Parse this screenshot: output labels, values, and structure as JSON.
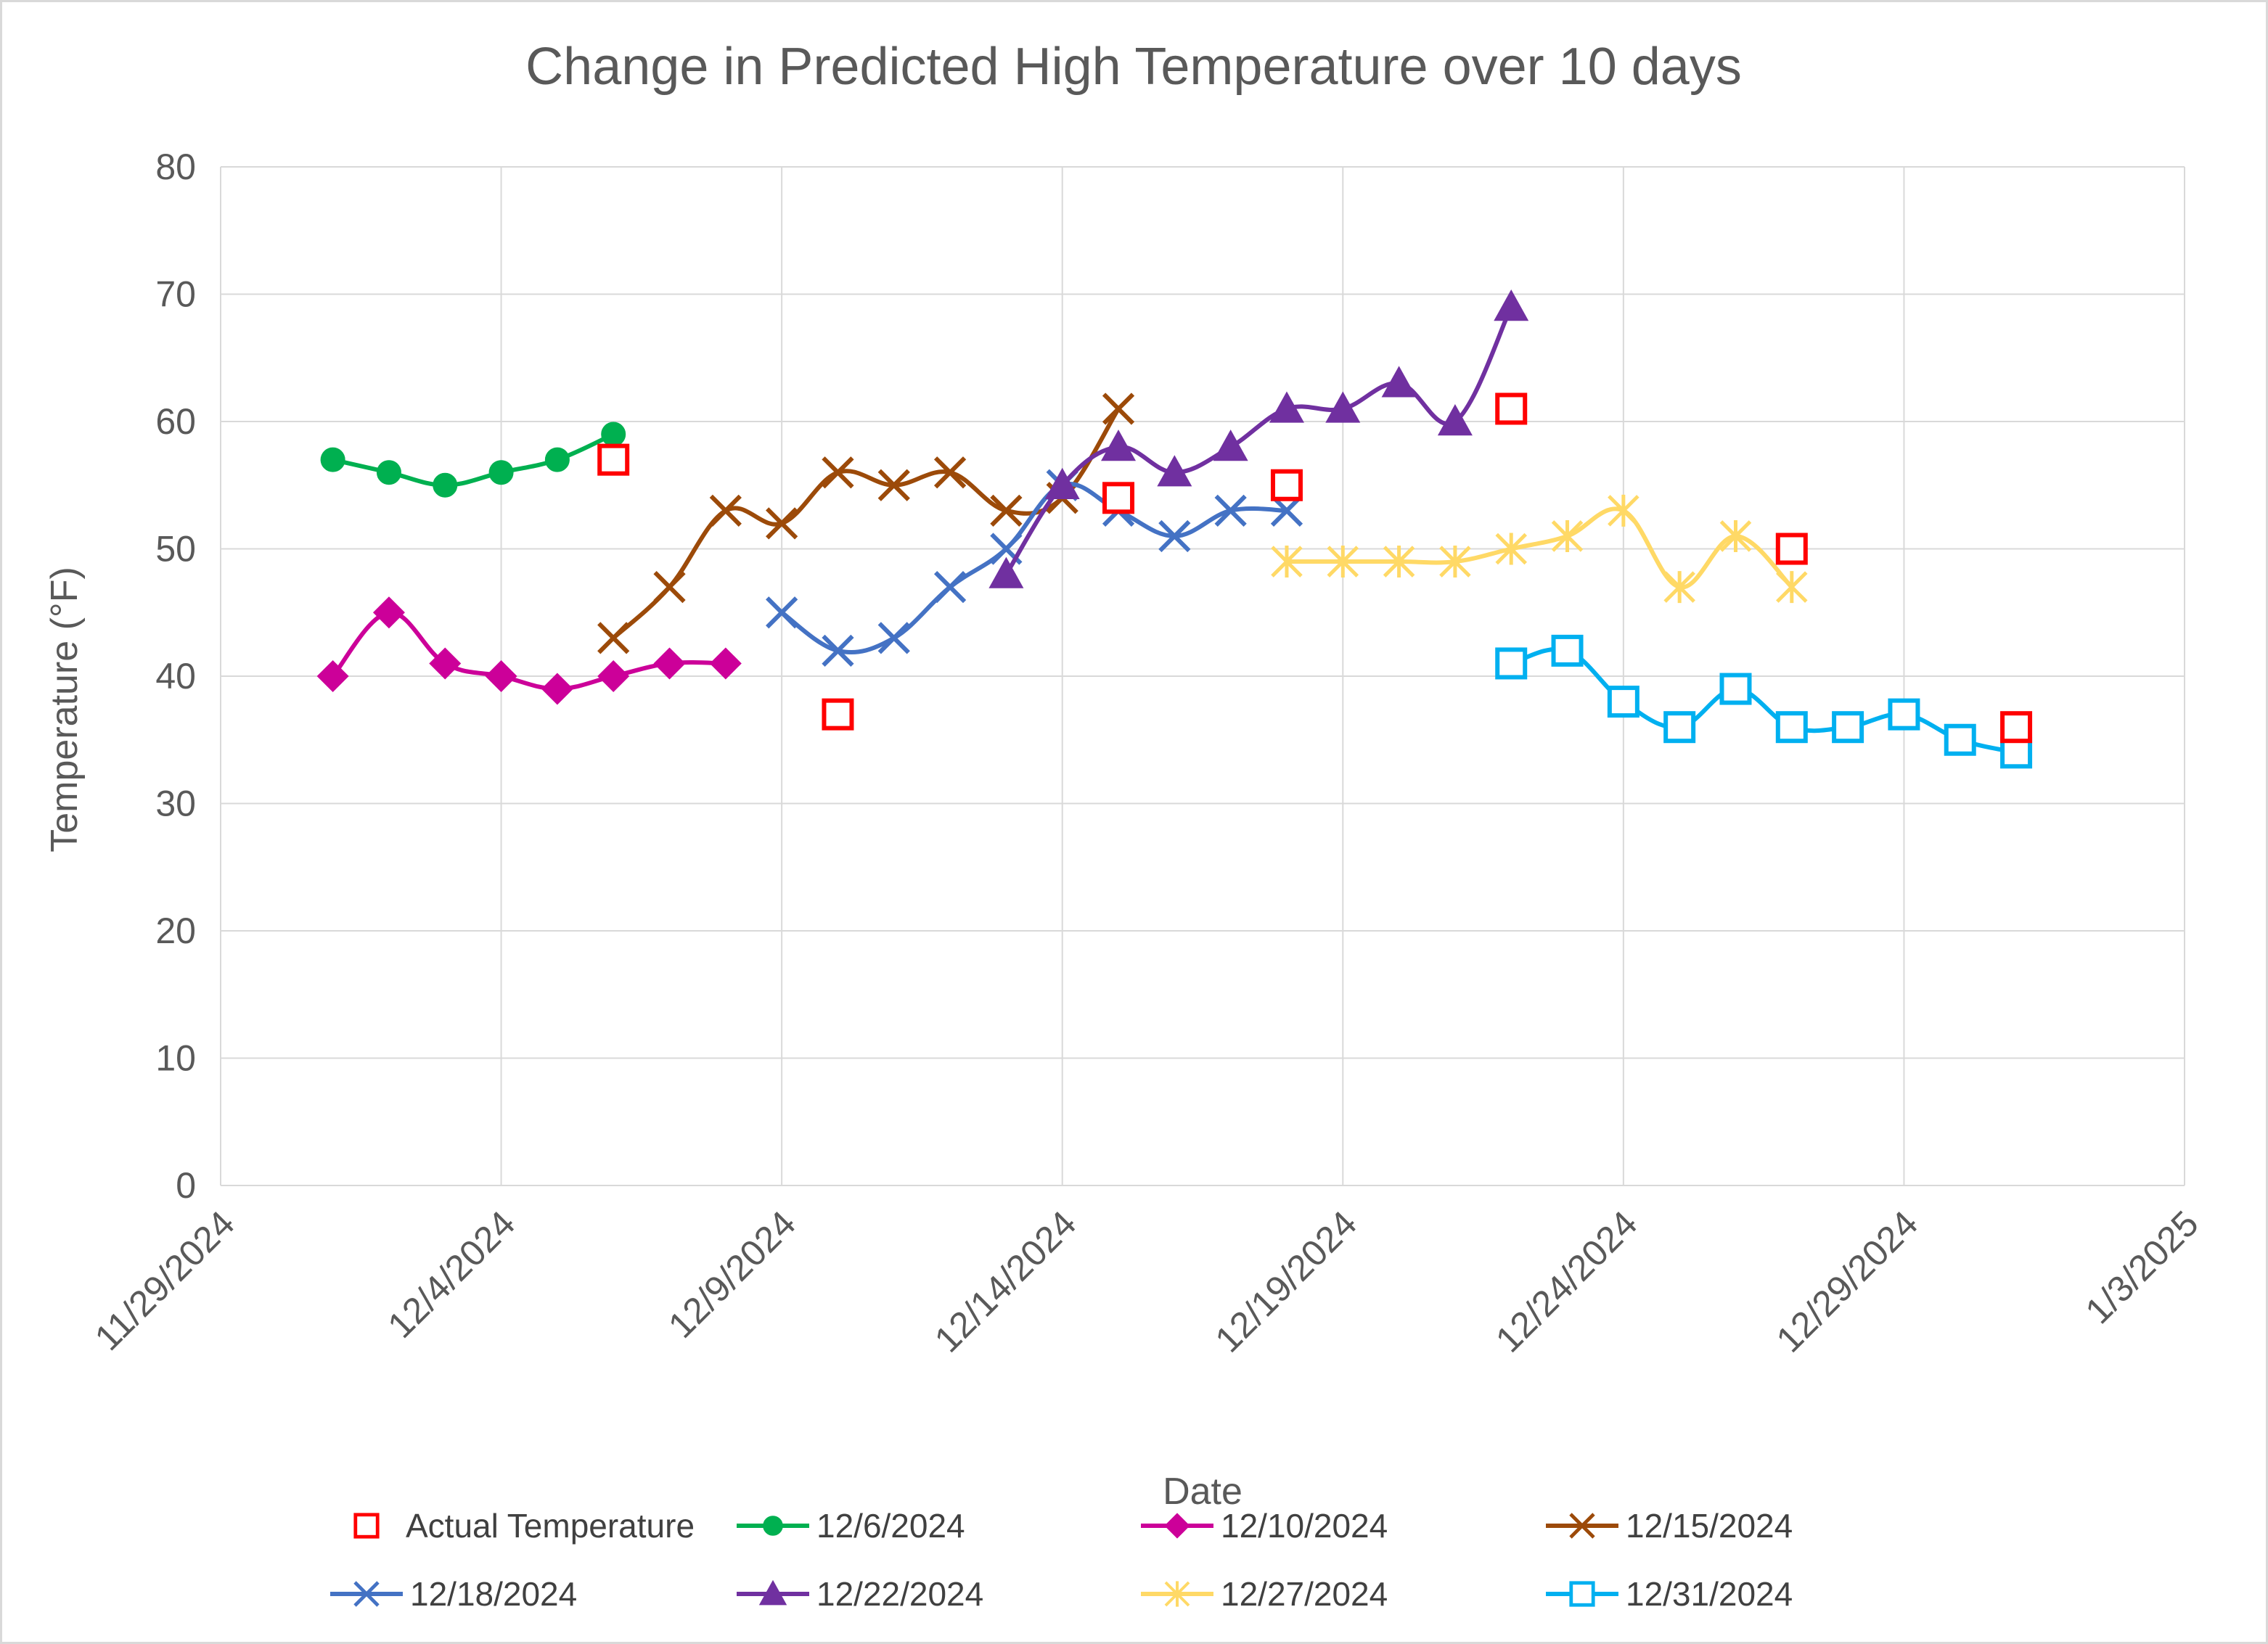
{
  "chart_data": {
    "type": "line",
    "title": "Change in Predicted High Temperature over 10 days",
    "xlabel": "Date",
    "ylabel": "Temperature (°F)",
    "ylim": [
      0,
      80
    ],
    "yticks": [
      "0",
      "10",
      "20",
      "30",
      "40",
      "50",
      "60",
      "70",
      "80"
    ],
    "xlim": [
      "2024-11-29",
      "2025-01-03"
    ],
    "xticks": [
      {
        "date": "2024-11-29",
        "label": "11/29/2024"
      },
      {
        "date": "2024-12-04",
        "label": "12/4/2024"
      },
      {
        "date": "2024-12-09",
        "label": "12/9/2024"
      },
      {
        "date": "2024-12-14",
        "label": "12/14/2024"
      },
      {
        "date": "2024-12-19",
        "label": "12/19/2024"
      },
      {
        "date": "2024-12-24",
        "label": "12/24/2024"
      },
      {
        "date": "2024-12-29",
        "label": "12/29/2024"
      },
      {
        "date": "2025-01-03",
        "label": "1/3/2025"
      }
    ],
    "grid": true,
    "legend_position": "bottom",
    "series": [
      {
        "name": "Actual Temperature",
        "color": "#ff0000",
        "marker": "square-open",
        "line": false,
        "x": [
          "2024-12-06",
          "2024-12-10",
          "2024-12-15",
          "2024-12-18",
          "2024-12-22",
          "2024-12-27",
          "2024-12-31"
        ],
        "y": [
          57,
          37,
          54,
          55,
          61,
          50,
          36
        ]
      },
      {
        "name": "12/6/2024",
        "color": "#00b050",
        "marker": "circle",
        "line": true,
        "x": [
          "2024-12-01",
          "2024-12-02",
          "2024-12-03",
          "2024-12-04",
          "2024-12-05",
          "2024-12-06"
        ],
        "y": [
          57,
          56,
          55,
          56,
          57,
          59
        ]
      },
      {
        "name": "12/10/2024",
        "color": "#cc0099",
        "marker": "diamond",
        "line": true,
        "x": [
          "2024-12-01",
          "2024-12-02",
          "2024-12-03",
          "2024-12-04",
          "2024-12-05",
          "2024-12-06",
          "2024-12-07",
          "2024-12-08"
        ],
        "y": [
          40,
          45,
          41,
          40,
          39,
          40,
          41,
          41
        ]
      },
      {
        "name": "12/15/2024",
        "color": "#9c4a09",
        "marker": "x",
        "line": true,
        "x": [
          "2024-12-06",
          "2024-12-07",
          "2024-12-08",
          "2024-12-09",
          "2024-12-10",
          "2024-12-11",
          "2024-12-12",
          "2024-12-13",
          "2024-12-14",
          "2024-12-15"
        ],
        "y": [
          43,
          47,
          53,
          52,
          56,
          55,
          56,
          53,
          54,
          61
        ]
      },
      {
        "name": "12/18/2024",
        "color": "#4472c4",
        "marker": "x",
        "line": true,
        "x": [
          "2024-12-09",
          "2024-12-10",
          "2024-12-11",
          "2024-12-12",
          "2024-12-13",
          "2024-12-14",
          "2024-12-15",
          "2024-12-16",
          "2024-12-17",
          "2024-12-18"
        ],
        "y": [
          45,
          42,
          43,
          47,
          50,
          55,
          53,
          51,
          53,
          53
        ]
      },
      {
        "name": "12/22/2024",
        "color": "#7030a0",
        "marker": "triangle",
        "line": true,
        "x": [
          "2024-12-13",
          "2024-12-14",
          "2024-12-15",
          "2024-12-16",
          "2024-12-17",
          "2024-12-18",
          "2024-12-19",
          "2024-12-20",
          "2024-12-21",
          "2024-12-22"
        ],
        "y": [
          48,
          55,
          58,
          56,
          58,
          61,
          61,
          63,
          60,
          69
        ]
      },
      {
        "name": "12/27/2024",
        "color": "#ffd966",
        "marker": "star",
        "line": true,
        "x": [
          "2024-12-18",
          "2024-12-19",
          "2024-12-20",
          "2024-12-21",
          "2024-12-22",
          "2024-12-23",
          "2024-12-24",
          "2024-12-25",
          "2024-12-26",
          "2024-12-27"
        ],
        "y": [
          49,
          49,
          49,
          49,
          50,
          51,
          53,
          47,
          51,
          47
        ]
      },
      {
        "name": "12/31/2024",
        "color": "#00b0f0",
        "marker": "square-open",
        "line": true,
        "x": [
          "2024-12-22",
          "2024-12-23",
          "2024-12-24",
          "2024-12-25",
          "2024-12-26",
          "2024-12-27",
          "2024-12-28",
          "2024-12-29",
          "2024-12-30",
          "2024-12-31"
        ],
        "y": [
          41,
          42,
          38,
          36,
          39,
          36,
          36,
          37,
          35,
          34
        ]
      }
    ]
  }
}
